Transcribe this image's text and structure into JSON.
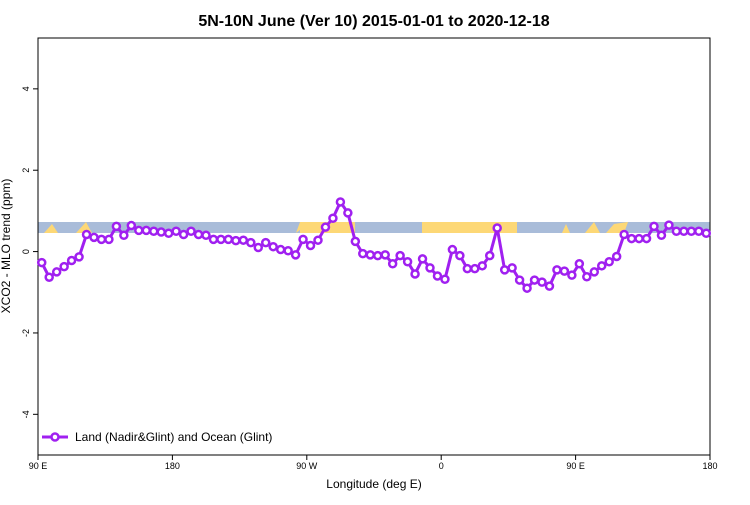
{
  "chart_data": {
    "type": "line",
    "title": "5N-10N June (Ver 10)   2015-01-01 to 2020-12-18",
    "x_label": "Longitude (deg E)",
    "y_label": "XCO2 - MLO trend (ppm)",
    "x": [
      92.5,
      97.5,
      102.5,
      107.5,
      112.5,
      117.5,
      122.5,
      127.5,
      132.5,
      137.5,
      142.5,
      147.5,
      152.5,
      157.5,
      162.5,
      167.5,
      172.5,
      177.5,
      182.5,
      187.5,
      192.5,
      197.5,
      202.5,
      207.5,
      212.5,
      217.5,
      222.5,
      227.5,
      232.5,
      237.5,
      242.5,
      247.5,
      252.5,
      257.5,
      262.5,
      267.5,
      272.5,
      277.5,
      282.5,
      287.5,
      292.5,
      297.5,
      302.5,
      307.5,
      312.5,
      317.5,
      322.5,
      327.5,
      332.5,
      337.5,
      342.5,
      347.5,
      352.5,
      357.5,
      362.5,
      367.5,
      372.5,
      377.5,
      382.5,
      387.5,
      392.5,
      397.5,
      402.5,
      407.5,
      412.5,
      417.5,
      422.5,
      427.5,
      432.5,
      437.5,
      442.5,
      447.5,
      452.5,
      457.5,
      462.5,
      467.5,
      472.5,
      477.5,
      482.5,
      487.5,
      492.5,
      497.5,
      502.5,
      507.5,
      512.5,
      517.5,
      522.5,
      527.5,
      532.5,
      537.5
    ],
    "series": [
      {
        "name": "Land (Nadir&Glint) and Ocean (Glint)",
        "color": "#a020f0",
        "values": [
          -0.27,
          -0.63,
          -0.5,
          -0.37,
          -0.22,
          -0.13,
          0.42,
          0.35,
          0.3,
          0.3,
          0.62,
          0.4,
          0.64,
          0.52,
          0.52,
          0.5,
          0.48,
          0.45,
          0.5,
          0.42,
          0.5,
          0.42,
          0.4,
          0.3,
          0.3,
          0.3,
          0.27,
          0.28,
          0.22,
          0.1,
          0.22,
          0.12,
          0.05,
          0.02,
          -0.08,
          0.3,
          0.15,
          0.28,
          0.6,
          0.82,
          1.22,
          0.95,
          0.25,
          -0.05,
          -0.08,
          -0.1,
          -0.08,
          -0.3,
          -0.1,
          -0.25,
          -0.55,
          -0.18,
          -0.4,
          -0.6,
          -0.68,
          0.05,
          -0.1,
          -0.42,
          -0.42,
          -0.35,
          -0.1,
          0.58,
          -0.45,
          -0.4,
          -0.7,
          -0.9,
          -0.7,
          -0.75,
          -0.85,
          -0.45,
          -0.48,
          -0.58,
          -0.3,
          -0.62,
          -0.5,
          -0.35,
          -0.25,
          -0.12,
          0.42,
          0.32,
          0.32,
          0.32,
          0.62,
          0.4,
          0.65,
          0.5,
          0.5,
          0.5,
          0.5,
          0.45
        ]
      }
    ],
    "xlim": [
      90,
      540
    ],
    "xticks": [
      {
        "value": 90,
        "label": "90 E"
      },
      180,
      {
        "value": 270,
        "label": "90 W"
      },
      {
        "value": 360,
        "label": "0"
      },
      {
        "value": 450,
        "label": "90 E"
      },
      {
        "value": 540,
        "label": "180"
      }
    ],
    "ylim": [
      -5,
      5.25
    ],
    "yticks": [
      -4,
      -2,
      0,
      2,
      4
    ],
    "legend": "bottom-left"
  }
}
